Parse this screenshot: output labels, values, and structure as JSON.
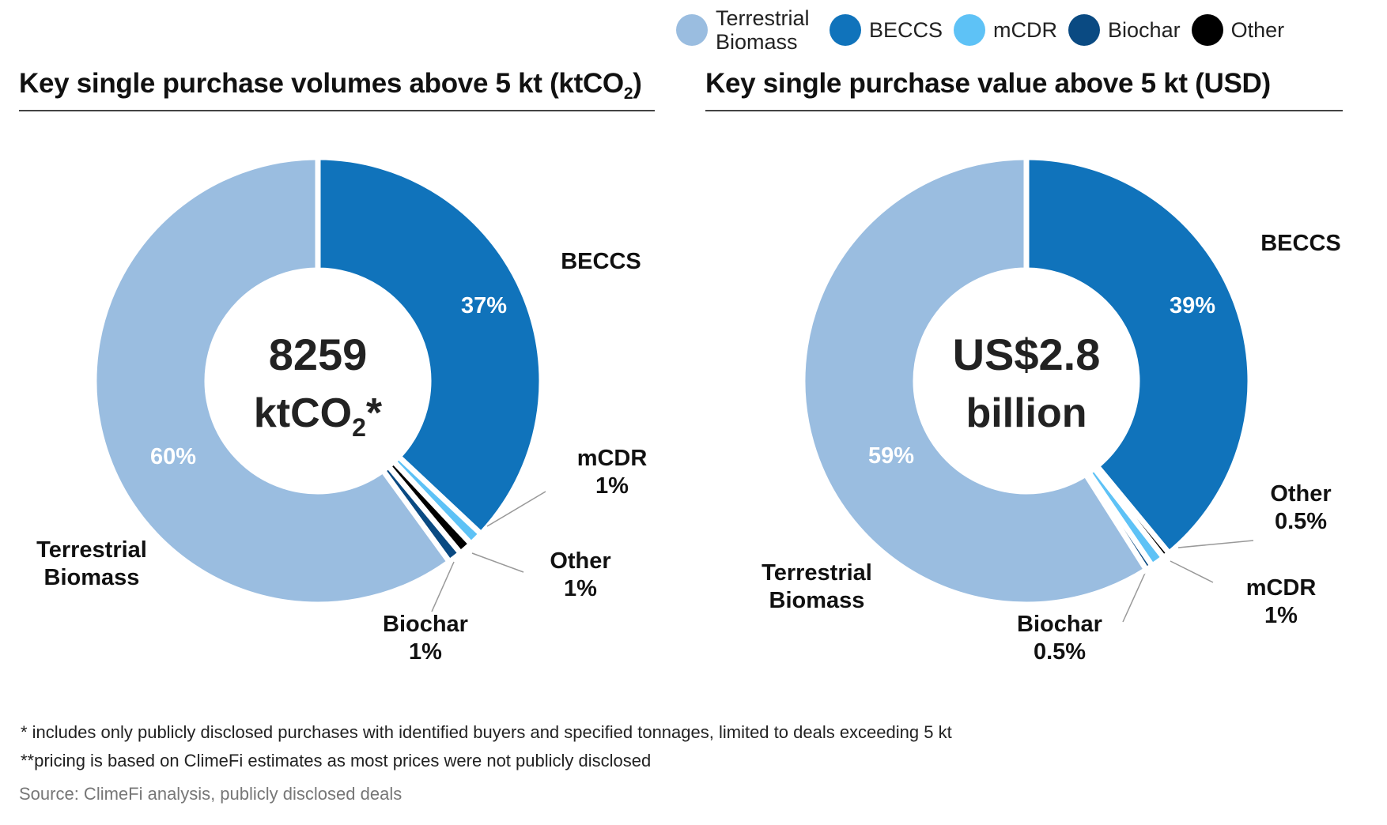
{
  "legend": [
    {
      "label": "Terrestrial Biomass",
      "color": "#9abde0"
    },
    {
      "label": "BECCS",
      "color": "#1073bb"
    },
    {
      "label": "mCDR",
      "color": "#5ec2f6"
    },
    {
      "label": "Biochar",
      "color": "#0a4a82"
    },
    {
      "label": "Other",
      "color": "#000000"
    }
  ],
  "chart_data": [
    {
      "type": "pie",
      "title": "Key single purchase volumes above 5 kt (ktCO2)",
      "center_label": [
        "8259",
        "ktCO2*"
      ],
      "slices": [
        {
          "label": "BECCS",
          "value": 37,
          "pct_label": "37%",
          "color": "#1073bb"
        },
        {
          "label": "mCDR",
          "value": 1,
          "pct_label": "1%",
          "color": "#5ec2f6"
        },
        {
          "label": "Other",
          "value": 1,
          "pct_label": "1%",
          "color": "#000000"
        },
        {
          "label": "Biochar",
          "value": 1,
          "pct_label": "1%",
          "color": "#0a4a82"
        },
        {
          "label": "Terrestrial Biomass",
          "value": 60,
          "pct_label": "60%",
          "color": "#9abde0"
        }
      ]
    },
    {
      "type": "pie",
      "title": "Key single purchase value above 5 kt  (USD)",
      "center_label": [
        "US$2.8",
        "billion"
      ],
      "slices": [
        {
          "label": "BECCS",
          "value": 39,
          "pct_label": "39%",
          "color": "#1073bb"
        },
        {
          "label": "Other",
          "value": 0.5,
          "pct_label": "0.5%",
          "color": "#000000"
        },
        {
          "label": "mCDR",
          "value": 1,
          "pct_label": "1%",
          "color": "#5ec2f6"
        },
        {
          "label": "Biochar",
          "value": 0.5,
          "pct_label": "0.5%",
          "color": "#0a4a82"
        },
        {
          "label": "Terrestrial Biomass",
          "value": 59,
          "pct_label": "59%",
          "color": "#9abde0"
        }
      ]
    }
  ],
  "footnotes": [
    "* includes only publicly disclosed purchases with identified buyers and specified tonnages, limited to deals exceeding 5 kt",
    "**pricing is based on ClimeFi estimates as most prices were not publicly disclosed"
  ],
  "source": "Source: ClimeFi analysis, publicly disclosed deals"
}
